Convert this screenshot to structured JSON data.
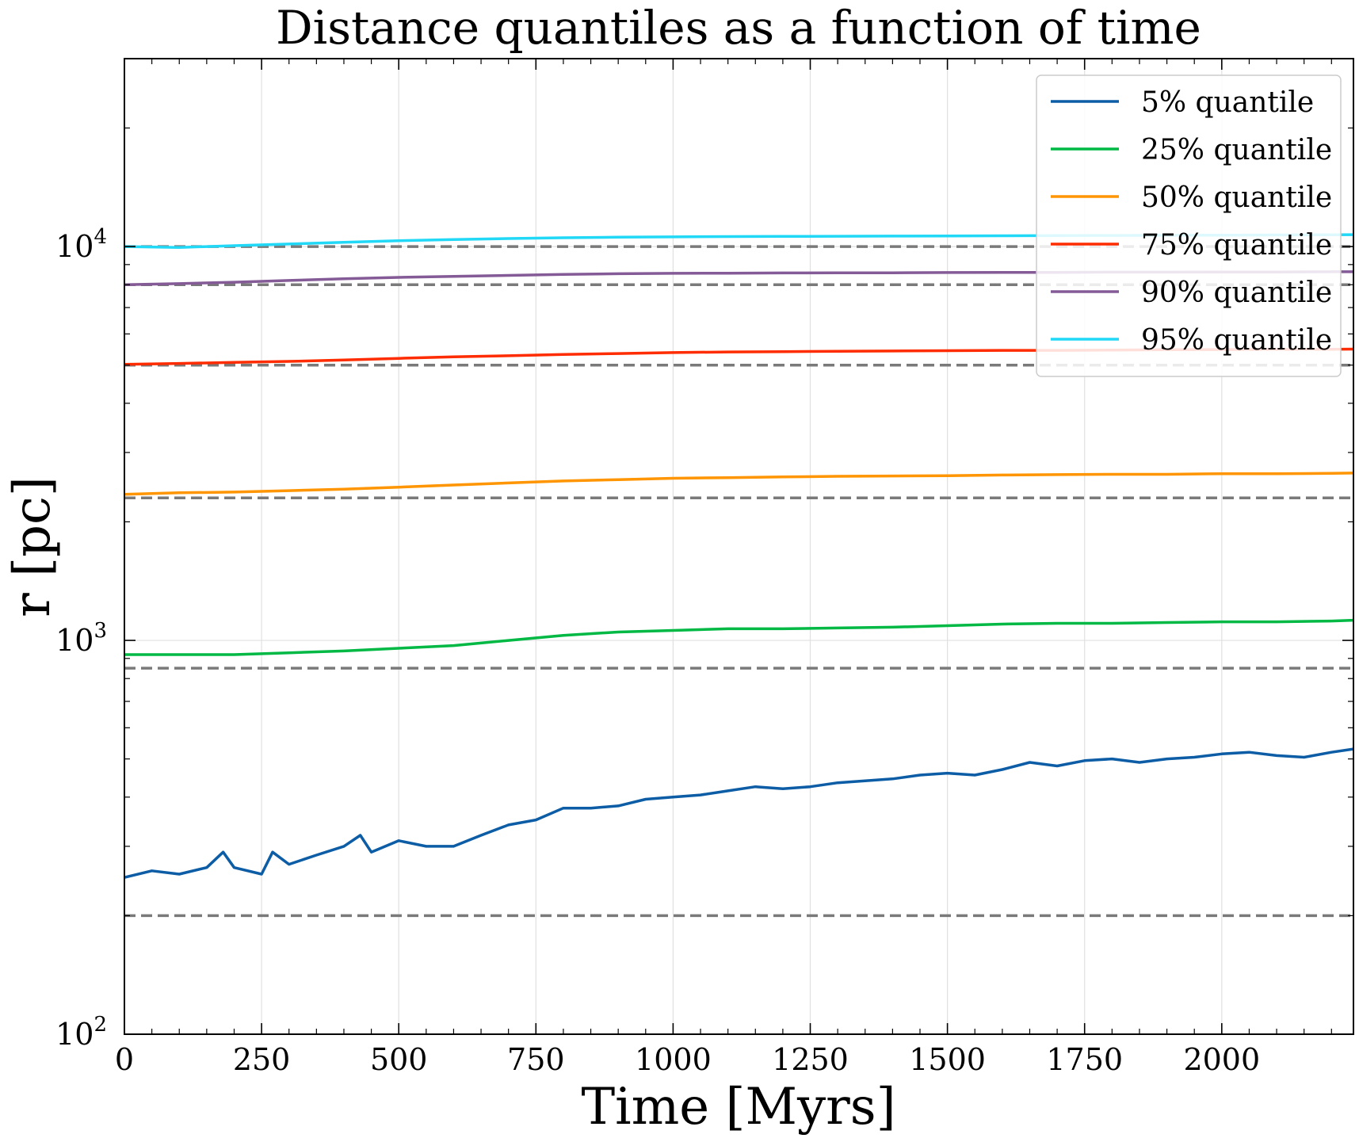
{
  "chart_data": {
    "type": "line",
    "title": "Distance quantiles as a function of time",
    "xlabel": "Time [Myrs]",
    "ylabel": "r [pc]",
    "xlim": [
      0,
      2240
    ],
    "ylim": [
      100,
      30000
    ],
    "yscale": "log",
    "grid": true,
    "legend_position": "top-right",
    "xticks": [
      0,
      250,
      500,
      750,
      1000,
      1250,
      1500,
      1750,
      2000
    ],
    "xtick_labels": [
      "0",
      "250",
      "500",
      "750",
      "1000",
      "1250",
      "1500",
      "1750",
      "2000"
    ],
    "yticks": [
      100,
      1000,
      10000
    ],
    "ytick_labels": [
      {
        "base": "10",
        "exp": "2"
      },
      {
        "base": "10",
        "exp": "3"
      },
      {
        "base": "10",
        "exp": "4"
      }
    ],
    "reference_lines": {
      "style": "dashed",
      "color": "#7a7a7a",
      "values": [
        200,
        850,
        2300,
        5000,
        8000,
        10000
      ]
    },
    "series": [
      {
        "name": "5% quantile",
        "color": "#0c5da5",
        "x": [
          0,
          50,
          100,
          150,
          180,
          200,
          250,
          270,
          300,
          350,
          400,
          430,
          450,
          500,
          550,
          600,
          650,
          700,
          750,
          800,
          850,
          900,
          950,
          1000,
          1050,
          1100,
          1150,
          1200,
          1250,
          1300,
          1350,
          1400,
          1450,
          1500,
          1550,
          1600,
          1650,
          1700,
          1750,
          1800,
          1850,
          1900,
          1950,
          2000,
          2050,
          2100,
          2150,
          2200,
          2240
        ],
        "values": [
          250,
          260,
          255,
          265,
          290,
          265,
          255,
          290,
          270,
          285,
          300,
          320,
          290,
          310,
          300,
          300,
          320,
          340,
          350,
          375,
          375,
          380,
          395,
          400,
          405,
          415,
          425,
          420,
          425,
          435,
          440,
          445,
          455,
          460,
          455,
          470,
          490,
          480,
          495,
          500,
          490,
          500,
          505,
          515,
          520,
          510,
          505,
          520,
          530
        ]
      },
      {
        "name": "25% quantile",
        "color": "#00b945",
        "x": [
          0,
          100,
          200,
          300,
          400,
          500,
          600,
          700,
          800,
          900,
          1000,
          1100,
          1200,
          1300,
          1400,
          1500,
          1600,
          1700,
          1800,
          1900,
          2000,
          2100,
          2200,
          2240
        ],
        "values": [
          920,
          920,
          920,
          930,
          940,
          955,
          970,
          1000,
          1030,
          1050,
          1060,
          1070,
          1070,
          1075,
          1080,
          1090,
          1100,
          1105,
          1105,
          1110,
          1115,
          1115,
          1120,
          1125
        ]
      },
      {
        "name": "50% quantile",
        "color": "#ff9500",
        "x": [
          0,
          100,
          200,
          300,
          400,
          500,
          600,
          700,
          800,
          900,
          1000,
          1100,
          1200,
          1300,
          1400,
          1500,
          1600,
          1700,
          1800,
          1900,
          2000,
          2100,
          2200,
          2240
        ],
        "values": [
          2350,
          2370,
          2380,
          2400,
          2420,
          2450,
          2480,
          2510,
          2540,
          2560,
          2580,
          2590,
          2600,
          2610,
          2615,
          2620,
          2630,
          2635,
          2640,
          2640,
          2650,
          2650,
          2655,
          2660
        ]
      },
      {
        "name": "75% quantile",
        "color": "#ff2c00",
        "x": [
          0,
          100,
          200,
          300,
          400,
          500,
          600,
          700,
          800,
          900,
          1000,
          1100,
          1200,
          1300,
          1400,
          1500,
          1600,
          1700,
          1800,
          1900,
          2000,
          2100,
          2200,
          2240
        ],
        "values": [
          5020,
          5050,
          5080,
          5110,
          5150,
          5200,
          5250,
          5280,
          5320,
          5350,
          5380,
          5400,
          5410,
          5420,
          5430,
          5440,
          5450,
          5450,
          5460,
          5470,
          5475,
          5480,
          5485,
          5490
        ]
      },
      {
        "name": "90% quantile",
        "color": "#845b97",
        "x": [
          0,
          100,
          200,
          300,
          400,
          500,
          600,
          700,
          800,
          900,
          1000,
          1100,
          1200,
          1300,
          1400,
          1500,
          1600,
          1700,
          1800,
          1900,
          2000,
          2100,
          2200,
          2240
        ],
        "values": [
          8000,
          8050,
          8120,
          8200,
          8280,
          8350,
          8400,
          8450,
          8500,
          8530,
          8550,
          8560,
          8570,
          8580,
          8580,
          8590,
          8600,
          8600,
          8610,
          8610,
          8620,
          8620,
          8630,
          8630
        ]
      },
      {
        "name": "95% quantile",
        "color": "#21d8f6",
        "x": [
          0,
          100,
          200,
          300,
          400,
          500,
          600,
          700,
          800,
          900,
          1000,
          1100,
          1200,
          1300,
          1400,
          1500,
          1600,
          1700,
          1800,
          1900,
          2000,
          2100,
          2200,
          2240
        ],
        "values": [
          10000,
          9950,
          10050,
          10150,
          10250,
          10350,
          10420,
          10480,
          10530,
          10560,
          10580,
          10600,
          10610,
          10620,
          10630,
          10640,
          10650,
          10660,
          10670,
          10680,
          10690,
          10700,
          10710,
          10720
        ]
      }
    ]
  }
}
